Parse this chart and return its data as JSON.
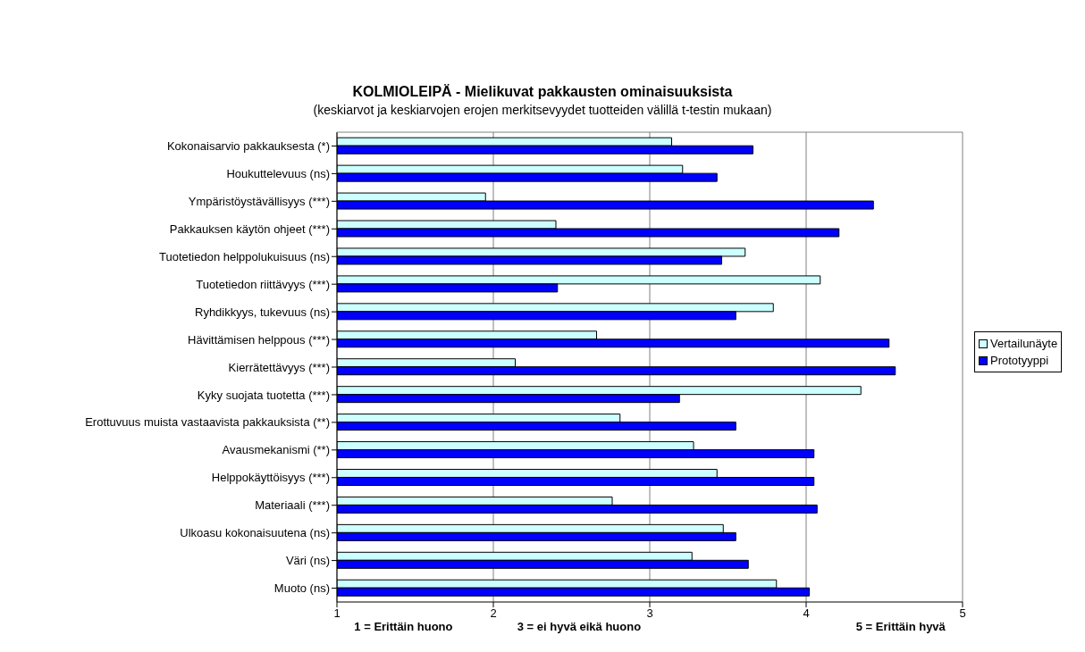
{
  "chart_data": {
    "type": "bar",
    "orientation": "horizontal",
    "title": "KOLMIOLEIPÄ - Mielikuvat pakkausten ominaisuuksista",
    "subtitle": "(keskiarvot ja keskiarvojen erojen merkitsevyydet tuotteiden välillä t-testin mukaan)",
    "categories": [
      "Kokonaisarvio pakkauksesta (*)",
      "Houkuttelevuus (ns)",
      "Ympäristöystävällisyys (***)",
      "Pakkauksen käytön ohjeet (***)",
      "Tuotetiedon helppolukuisuus (ns)",
      "Tuotetiedon riittävyys (***)",
      "Ryhdikkyys, tukevuus (ns)",
      "Hävittämisen helppous (***)",
      "Kierrätettävyys (***)",
      "Kyky suojata tuotetta (***)",
      "Erottuvuus muista vastaavista pakkauksista (**)",
      "Avausmekanismi (**)",
      "Helppokäyttöisyys (***)",
      "Materiaali (***)",
      "Ulkoasu kokonaisuutena (ns)",
      "Väri (ns)",
      "Muoto (ns)"
    ],
    "series": [
      {
        "name": "Vertailunäyte",
        "color": "#ccffff",
        "values": [
          3.14,
          3.21,
          1.95,
          2.4,
          3.61,
          4.09,
          3.79,
          2.66,
          2.14,
          4.35,
          2.81,
          3.28,
          3.43,
          2.76,
          3.47,
          3.27,
          3.81
        ]
      },
      {
        "name": "Prototyyppi",
        "color": "#0000ff",
        "values": [
          3.66,
          3.43,
          4.43,
          4.21,
          3.46,
          2.41,
          3.55,
          4.53,
          4.57,
          3.19,
          3.55,
          4.05,
          4.05,
          4.07,
          3.55,
          3.63,
          4.02
        ]
      }
    ],
    "xlim": [
      1,
      5
    ],
    "xticks": [
      1,
      2,
      3,
      4,
      5
    ],
    "grid": "x",
    "legend": "right",
    "annotations": [
      "1 = Erittäin huono",
      "3 = ei hyvä eikä huono",
      "5 = Erittäin hyvä"
    ]
  }
}
